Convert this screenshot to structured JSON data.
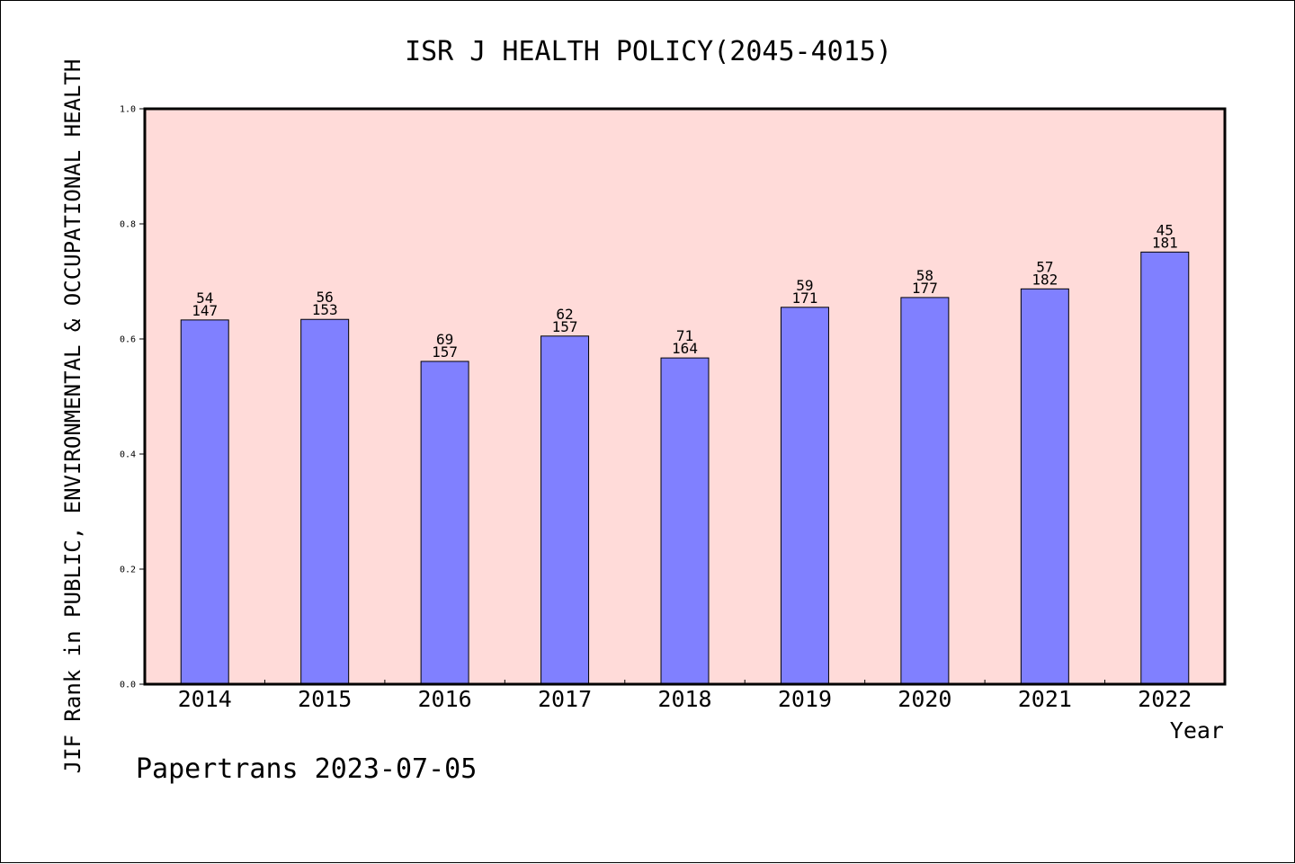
{
  "chart_data": {
    "type": "bar",
    "title": "ISR J HEALTH POLICY(2045-4015)",
    "xlabel": "Year",
    "ylabel": "JIF Rank in PUBLIC, ENVIRONMENTAL & OCCUPATIONAL HEALTH",
    "categories": [
      "2014",
      "2015",
      "2016",
      "2017",
      "2018",
      "2019",
      "2020",
      "2021",
      "2022"
    ],
    "values": [
      0.633,
      0.634,
      0.561,
      0.605,
      0.567,
      0.655,
      0.672,
      0.687,
      0.751
    ],
    "labels_top": [
      "54",
      "56",
      "69",
      "62",
      "71",
      "59",
      "58",
      "57",
      "45"
    ],
    "labels_bottom": [
      "147",
      "153",
      "157",
      "157",
      "164",
      "171",
      "177",
      "182",
      "181"
    ],
    "ylim": [
      0,
      1.0
    ],
    "yticks": [
      "0.0",
      "0.2",
      "0.4",
      "0.6",
      "0.8",
      "1.0"
    ],
    "grid": false,
    "colors": {
      "plot_bg": "#ffdbd9",
      "bar": "#8080ff"
    }
  },
  "footer": "Papertrans 2023-07-05"
}
